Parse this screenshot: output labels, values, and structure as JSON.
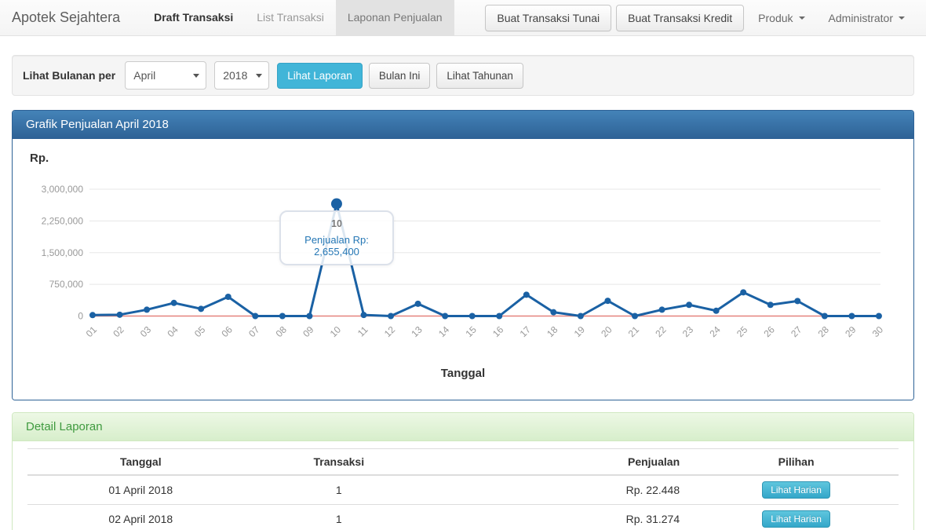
{
  "navbar": {
    "brand": "Apotek Sejahtera",
    "items": [
      {
        "label": "Draft Transaksi",
        "state": "emphasis"
      },
      {
        "label": "List Transaksi",
        "state": "normal"
      },
      {
        "label": "Laponan Penjualan",
        "state": "active"
      }
    ],
    "buttons": {
      "cash": "Buat Transaksi Tunai",
      "credit": "Buat Transaksi Kredit"
    },
    "dropdowns": {
      "products": "Produk",
      "user": "Administrator"
    }
  },
  "filter": {
    "label": "Lihat Bulanan per",
    "month_selected": "April",
    "year_selected": "2018",
    "submit_button": "Lihat Laporan",
    "this_month_button": "Bulan Ini",
    "yearly_button": "Lihat Tahunan"
  },
  "chart_panel": {
    "title": "Grafik Penjualan April 2018",
    "y_unit_label": "Rp.",
    "x_axis_title": "Tanggal",
    "tooltip": {
      "day": "10",
      "text": "Penjualan Rp: 2,655,400"
    }
  },
  "chart_data": {
    "type": "line",
    "title": "Grafik Penjualan April 2018",
    "xlabel": "Tanggal",
    "ylabel": "Rp.",
    "x": [
      "01",
      "02",
      "03",
      "04",
      "05",
      "06",
      "07",
      "08",
      "09",
      "10",
      "11",
      "12",
      "13",
      "14",
      "15",
      "16",
      "17",
      "18",
      "19",
      "20",
      "21",
      "22",
      "23",
      "24",
      "25",
      "26",
      "27",
      "28",
      "29",
      "30"
    ],
    "series": [
      {
        "name": "Penjualan",
        "color": "#1a61a4",
        "points": true,
        "values": [
          22448,
          31274,
          150000,
          310000,
          170000,
          455000,
          0,
          0,
          0,
          2655400,
          25000,
          0,
          290000,
          0,
          0,
          0,
          505000,
          90000,
          0,
          360000,
          0,
          150000,
          265000,
          125000,
          560000,
          265000,
          355000,
          0,
          0,
          0
        ]
      },
      {
        "name": "baseline",
        "color": "#e5837d",
        "points": false,
        "values": [
          0,
          0,
          0,
          0,
          0,
          0,
          0,
          0,
          0,
          0,
          0,
          0,
          0,
          0,
          0,
          0,
          0,
          0,
          0,
          0,
          0,
          0,
          0,
          0,
          0,
          0,
          0,
          0,
          0,
          0
        ]
      }
    ],
    "ylim": [
      0,
      3000000
    ],
    "yticks": [
      0,
      750000,
      1500000,
      2250000,
      3000000
    ],
    "ytick_labels": [
      "0",
      "750,000",
      "1,500,000",
      "2,250,000",
      "3,000,000"
    ],
    "highlight": {
      "x": "10",
      "value": 2655400,
      "tooltip": "Penjualan Rp: 2,655,400"
    },
    "grid": true,
    "legend": "none"
  },
  "detail_panel": {
    "title": "Detail Laporan",
    "table": {
      "headers": [
        "Tanggal",
        "Transaksi",
        "Penjualan",
        "Pilihan"
      ],
      "rows": [
        {
          "tanggal": "01 April 2018",
          "transaksi": "1",
          "penjualan": "Rp. 22.448",
          "action": "Lihat Harian"
        },
        {
          "tanggal": "02 April 2018",
          "transaksi": "1",
          "penjualan": "Rp. 31.274",
          "action": "Lihat Harian"
        }
      ]
    }
  },
  "colors": {
    "accent_teal": "#41b5d8",
    "panel_blue": "#2e6296",
    "panel_green_text": "#3f9a3f",
    "line_blue": "#1a61a4",
    "baseline_red": "#e5837d",
    "grid": "#e7e7e7",
    "tick_text": "#999999"
  }
}
